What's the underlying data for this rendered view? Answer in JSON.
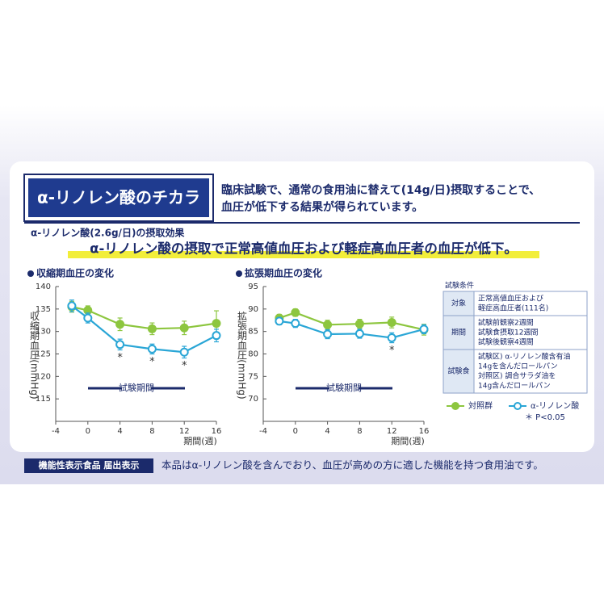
{
  "header": {
    "badge": "α-リノレン酸のチカラ",
    "description": [
      "臨床試験で、通常の食用油に替えて(14g/日)摂取することで、",
      "血圧が低下する結果が得られています。"
    ],
    "subtitle": "α-リノレン酸(2.6g/日)の摂取効果",
    "headline": "α-リノレン酸の摂取で正常高値血圧および軽症高血圧者の血圧が低下。"
  },
  "chart_data": [
    {
      "type": "line",
      "title": "収縮期血圧の変化",
      "y_label": "収縮期血圧(mmHg)",
      "x_label": "期間(週)",
      "period_label": "試験期間",
      "x": [
        -2,
        0,
        4,
        8,
        12,
        16
      ],
      "xlim": [
        -4,
        16
      ],
      "xticks": [
        -4,
        0,
        4,
        8,
        12,
        16
      ],
      "ylim": [
        110,
        140
      ],
      "yticks": [
        115,
        120,
        125,
        130,
        135,
        140
      ],
      "series": [
        {
          "name": "対照群",
          "color": "#8dc63f",
          "values": [
            135.5,
            134.7,
            131.6,
            130.6,
            130.8,
            131.8
          ],
          "errors": [
            1.2,
            1.0,
            1.4,
            1.3,
            1.5,
            2.8
          ]
        },
        {
          "name": "α-リノレン酸",
          "color": "#2aa6d6",
          "values": [
            135.7,
            133.0,
            127.1,
            126.1,
            125.4,
            129.1
          ],
          "errors": [
            1.3,
            1.1,
            1.2,
            1.1,
            1.3,
            1.4
          ]
        }
      ],
      "annotations": [
        {
          "x": 4,
          "text": "*"
        },
        {
          "x": 8,
          "text": "*"
        },
        {
          "x": 12,
          "text": "*"
        }
      ]
    },
    {
      "type": "line",
      "title": "拡張期血圧の変化",
      "y_label": "拡張期血圧(mmHg)",
      "x_label": "期間(週)",
      "period_label": "試験期間",
      "x": [
        -2,
        0,
        4,
        8,
        12,
        16
      ],
      "xlim": [
        -4,
        16
      ],
      "xticks": [
        -4,
        0,
        4,
        8,
        12,
        16
      ],
      "ylim": [
        65,
        95
      ],
      "yticks": [
        70,
        75,
        80,
        85,
        90,
        95
      ],
      "series": [
        {
          "name": "対照群",
          "color": "#8dc63f",
          "values": [
            88.0,
            89.2,
            86.5,
            86.7,
            87.0,
            85.4
          ],
          "errors": [
            0.8,
            0.8,
            1.0,
            1.0,
            1.2,
            1.2
          ]
        },
        {
          "name": "α-リノレン酸",
          "color": "#2aa6d6",
          "values": [
            87.3,
            86.8,
            84.4,
            84.5,
            83.6,
            85.5
          ],
          "errors": [
            0.8,
            0.9,
            1.0,
            1.0,
            1.1,
            1.0
          ]
        }
      ],
      "annotations": [
        {
          "x": 12,
          "text": "*"
        }
      ]
    }
  ],
  "conditions": {
    "title": "試験条件",
    "rows": [
      {
        "label": "対象",
        "lines": [
          "正常高値血圧および",
          "軽症高血圧者(111名)"
        ]
      },
      {
        "label": "期間",
        "lines": [
          "試験前観察2週間",
          "試験食摂取12週間",
          "試験後観察4週間"
        ]
      },
      {
        "label": "試験食",
        "lines": [
          "試験区) α-リノレン酸含有油",
          "14gを含んだロールパン",
          "対照区) 調合サラダ油を",
          "14g含んだロールパン"
        ]
      }
    ]
  },
  "significance": "＊ P<0.05",
  "footer": {
    "badge": "機能性表示食品 届出表示",
    "text": "本品はα-リノレン酸を含んでおり、血圧が高めの方に適した機能を持つ食用油です。"
  }
}
